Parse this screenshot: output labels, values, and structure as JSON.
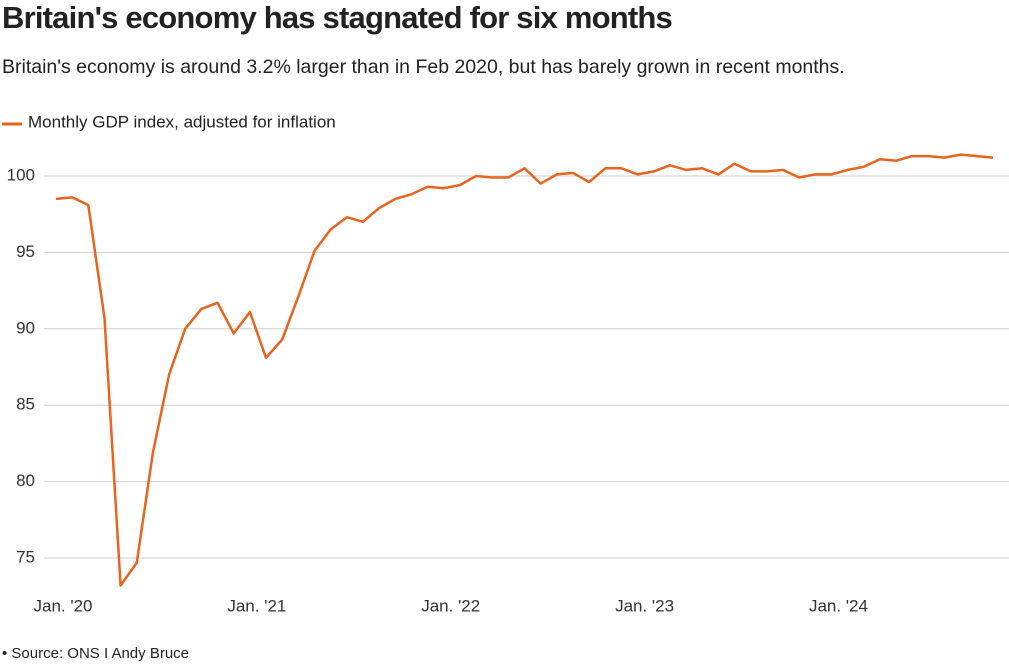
{
  "chart_data": {
    "type": "line",
    "title": "Britain's economy has stagnated for six months",
    "subtitle": "Britain's economy is around 3.2% larger than in Feb 2020, but has barely grown in recent months.",
    "source": "• Source: ONS I Andy Bruce",
    "x": [
      "2020-01",
      "2020-02",
      "2020-03",
      "2020-04",
      "2020-05",
      "2020-06",
      "2020-07",
      "2020-08",
      "2020-09",
      "2020-10",
      "2020-11",
      "2020-12",
      "2021-01",
      "2021-02",
      "2021-03",
      "2021-04",
      "2021-05",
      "2021-06",
      "2021-07",
      "2021-08",
      "2021-09",
      "2021-10",
      "2021-11",
      "2021-12",
      "2022-01",
      "2022-02",
      "2022-03",
      "2022-04",
      "2022-05",
      "2022-06",
      "2022-07",
      "2022-08",
      "2022-09",
      "2022-10",
      "2022-11",
      "2022-12",
      "2023-01",
      "2023-02",
      "2023-03",
      "2023-04",
      "2023-05",
      "2023-06",
      "2023-07",
      "2023-08",
      "2023-09",
      "2023-10",
      "2023-11",
      "2023-12",
      "2024-01",
      "2024-02",
      "2024-03",
      "2024-04",
      "2024-05",
      "2024-06",
      "2024-07",
      "2024-08",
      "2024-09",
      "2024-10",
      "2024-11"
    ],
    "series": [
      {
        "name": "Monthly GDP index, adjusted for inflation",
        "color": "#e8641e",
        "values": [
          98.5,
          98.6,
          98.1,
          90.7,
          73.2,
          74.7,
          81.9,
          87.0,
          90.0,
          91.3,
          91.7,
          89.7,
          91.1,
          88.1,
          89.3,
          92.1,
          95.1,
          96.5,
          97.3,
          97.0,
          97.9,
          98.5,
          98.8,
          99.3,
          99.2,
          99.4,
          100.0,
          99.9,
          99.9,
          100.5,
          99.5,
          100.1,
          100.2,
          99.6,
          100.5,
          100.5,
          100.1,
          100.3,
          100.7,
          100.4,
          100.5,
          100.1,
          100.8,
          100.3,
          100.3,
          100.4,
          99.9,
          100.1,
          100.1,
          100.4,
          100.6,
          101.1,
          101.0,
          101.3,
          101.3,
          101.2,
          101.4,
          101.3,
          101.2
        ]
      }
    ],
    "xticks": [
      {
        "value": "2020-01",
        "label": "Jan. '20"
      },
      {
        "value": "2021-01",
        "label": "Jan. '21"
      },
      {
        "value": "2022-01",
        "label": "Jan. '22"
      },
      {
        "value": "2023-01",
        "label": "Jan. '23"
      },
      {
        "value": "2024-01",
        "label": "Jan. '24"
      }
    ],
    "ylim": [
      73,
      102
    ],
    "yticks": [
      75,
      80,
      85,
      90,
      95,
      100
    ],
    "grid": true
  }
}
